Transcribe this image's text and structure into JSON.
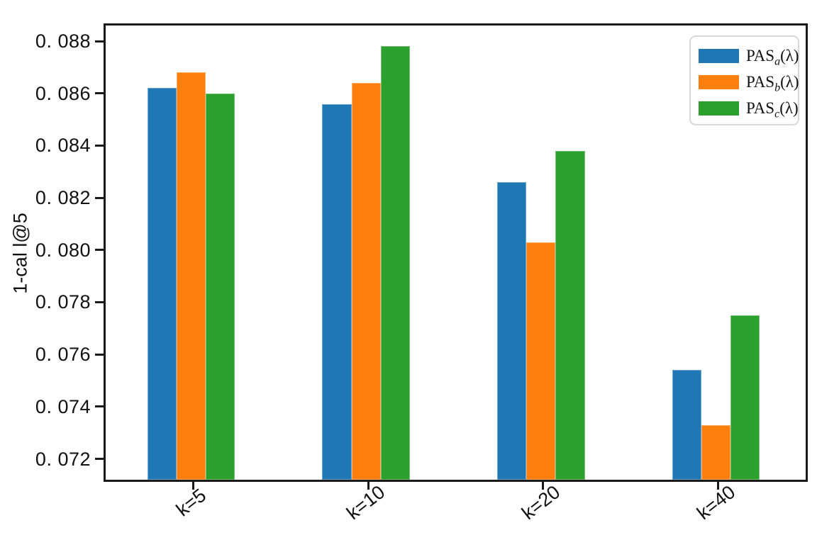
{
  "figure": {
    "background": "#ffffff",
    "spine_color": "#1a1a1a"
  },
  "chart_data": {
    "type": "bar",
    "title": "",
    "xlabel": "",
    "ylabel": "1-cal l@5",
    "categories": [
      "k=5",
      "k=10",
      "k=20",
      "k=40"
    ],
    "series": [
      {
        "name": "PASa(λ)",
        "label_parts": {
          "base": "PAS",
          "sub": "a",
          "suffix": "(λ)"
        },
        "color": "#1f77b4",
        "values": [
          0.0862,
          0.0856,
          0.0826,
          0.0754
        ]
      },
      {
        "name": "PASb(λ)",
        "label_parts": {
          "base": "PAS",
          "sub": "b",
          "suffix": "(λ)"
        },
        "color": "#ff7f0e",
        "values": [
          0.0868,
          0.0864,
          0.0803,
          0.0733
        ]
      },
      {
        "name": "PASc(λ)",
        "label_parts": {
          "base": "PAS",
          "sub": "c",
          "suffix": "(λ)"
        },
        "color": "#2ca02c",
        "values": [
          0.086,
          0.0878,
          0.0838,
          0.0775
        ]
      }
    ],
    "ylim": [
      0.0712,
      0.0886
    ],
    "yticks": {
      "values": [
        0.072,
        0.074,
        0.076,
        0.078,
        0.08,
        0.082,
        0.084,
        0.086,
        0.088
      ],
      "labels": [
        "0. 072",
        "0. 074",
        "0. 076",
        "0. 078",
        "0. 080",
        "0. 082",
        "0. 084",
        "0. 086",
        "0. 088"
      ]
    },
    "bar_group_fraction": 0.5,
    "legend_position": "upper right",
    "grid": false
  }
}
